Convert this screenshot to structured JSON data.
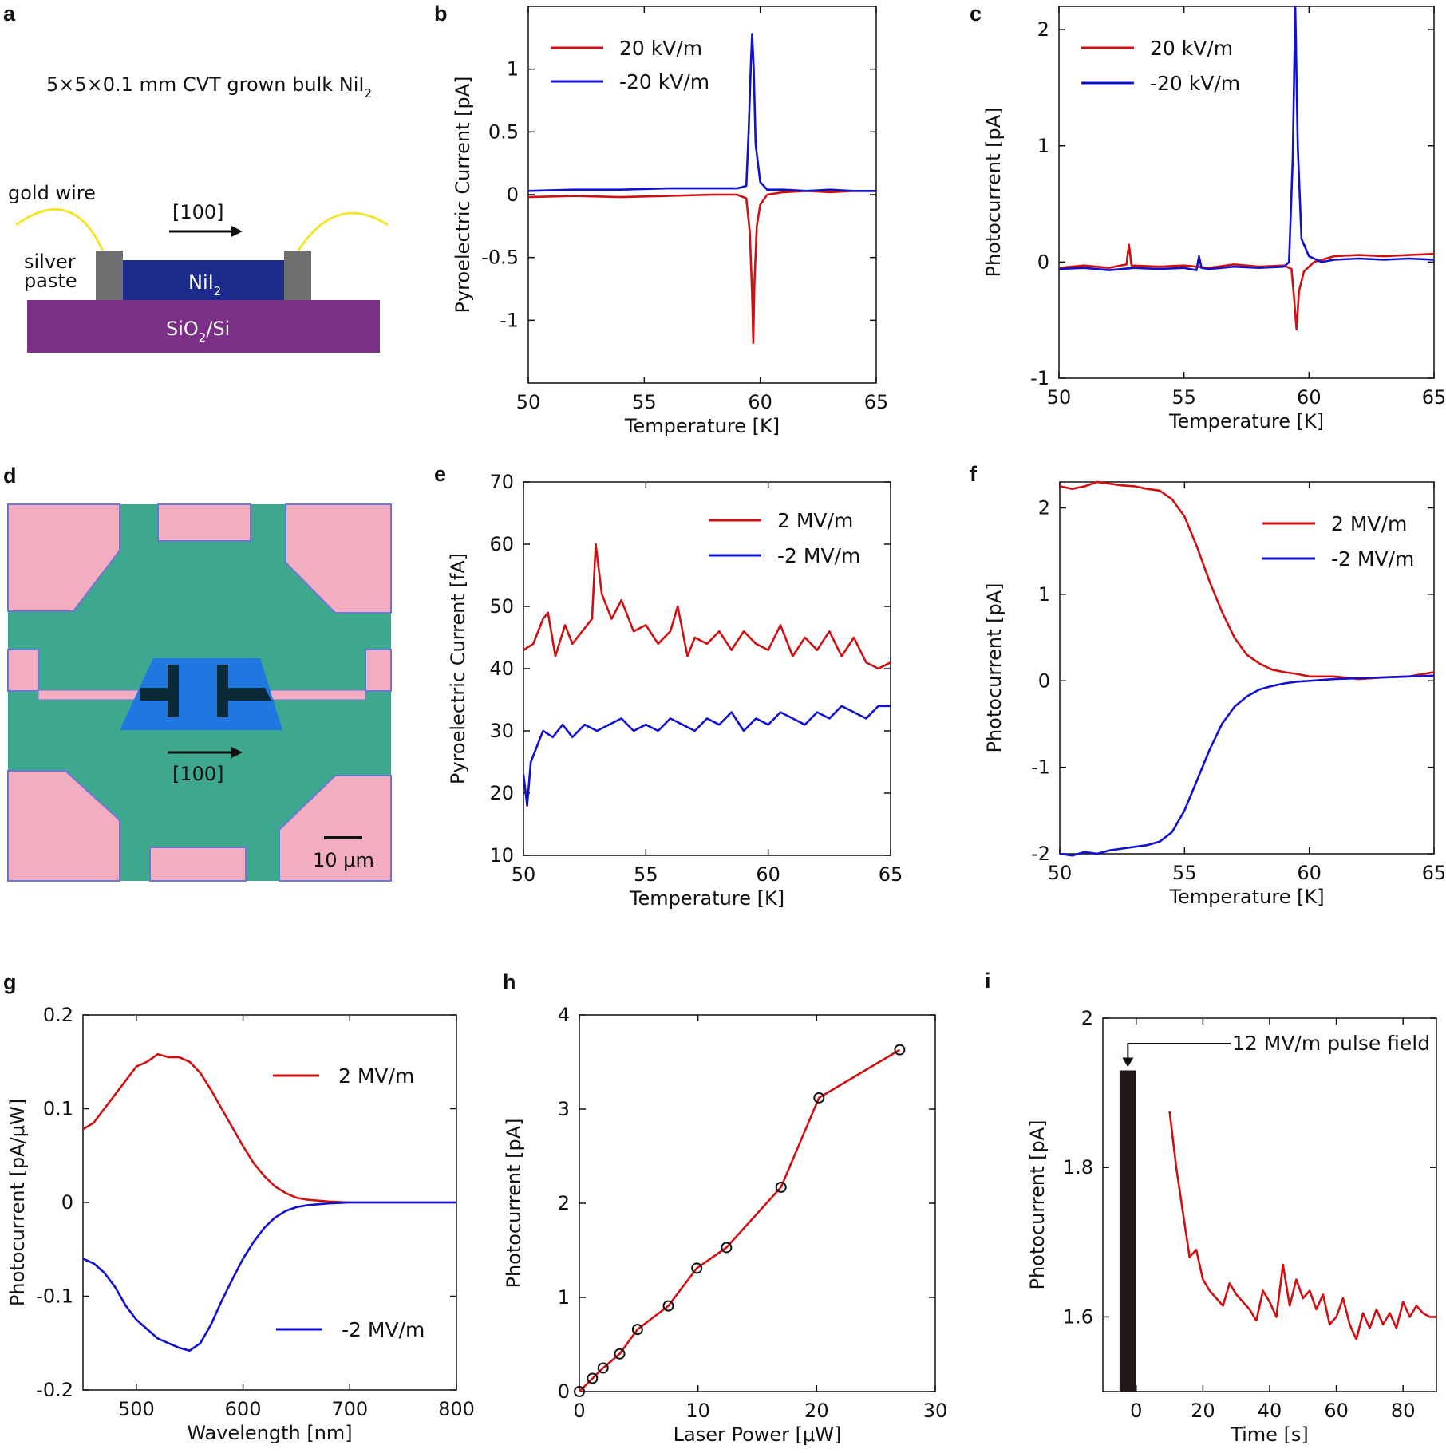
{
  "panel_labels": {
    "a": "a",
    "b": "b",
    "c": "c",
    "d": "d",
    "e": "e",
    "f": "f",
    "g": "g",
    "h": "h",
    "i": "i"
  },
  "schematic": {
    "title": "5×5×0.1 mm CVT grown bulk NiI",
    "title_sub": "2",
    "gold_wire": "gold wire",
    "direction": "[100]",
    "silver": "silver",
    "paste": "paste",
    "crystal": "NiI",
    "crystal_sub": "2",
    "substrate": "SiO",
    "substrate_sub": "2",
    "substrate_tail": "/Si",
    "colors": {
      "crystal": "#1c2a8c",
      "substrate": "#7b2f86",
      "contact": "#6f6f6f",
      "wire": "#f5e52a"
    }
  },
  "micrograph": {
    "direction": "[100]",
    "scale_bar": "10 μm",
    "colors": {
      "background": "#3da88e",
      "pad": "#f2aec0",
      "flake": "#1e78e0",
      "electrode": "#0b2a38"
    }
  },
  "chart_data": [
    {
      "id": "b",
      "type": "line",
      "title": "",
      "xlabel": "Temperature [K]",
      "ylabel": "Pyroelectric Current [pA]",
      "xlim": [
        50,
        65
      ],
      "ylim": [
        -1.5,
        1.5
      ],
      "xticks": [
        50,
        55,
        60,
        65
      ],
      "xtick_labels": [
        "50",
        "55",
        "60",
        "65"
      ],
      "yticks": [
        -1,
        -0.5,
        0,
        0.5,
        1
      ],
      "ytick_labels": [
        "-1",
        "-0.5",
        "0",
        "0.5",
        "1"
      ],
      "legend": "top-left",
      "series": [
        {
          "name": "20 kV/m",
          "color": "#d01010",
          "x": [
            50,
            52,
            54,
            56,
            58,
            59,
            59.4,
            59.55,
            59.65,
            59.7,
            59.75,
            59.85,
            60.0,
            60.3,
            61,
            62,
            63,
            64,
            65
          ],
          "y": [
            -0.02,
            -0.01,
            -0.02,
            -0.01,
            0.0,
            0.0,
            -0.03,
            -0.3,
            -0.8,
            -1.18,
            -0.7,
            -0.25,
            -0.08,
            0.0,
            0.02,
            0.03,
            0.02,
            0.03,
            0.03
          ]
        },
        {
          "name": "-20 kV/m",
          "color": "#1010d0",
          "x": [
            50,
            52,
            54,
            56,
            58,
            59,
            59.4,
            59.5,
            59.6,
            59.65,
            59.72,
            59.8,
            60.0,
            60.3,
            61,
            62,
            63,
            64,
            65
          ],
          "y": [
            0.03,
            0.04,
            0.04,
            0.05,
            0.05,
            0.05,
            0.07,
            0.5,
            1.05,
            1.28,
            1.0,
            0.4,
            0.1,
            0.04,
            0.04,
            0.03,
            0.04,
            0.03,
            0.03
          ]
        }
      ]
    },
    {
      "id": "c",
      "type": "line",
      "title": "",
      "xlabel": "Temperature [K]",
      "ylabel": "Photocurrent [pA]",
      "xlim": [
        50,
        65
      ],
      "ylim": [
        -1,
        2.2
      ],
      "xticks": [
        50,
        55,
        60,
        65
      ],
      "xtick_labels": [
        "50",
        "55",
        "60",
        "65"
      ],
      "yticks": [
        -1,
        0,
        1,
        2
      ],
      "ytick_labels": [
        "-1",
        "0",
        "1",
        "2"
      ],
      "legend": "top-left",
      "series": [
        {
          "name": "20 kV/m",
          "color": "#d01010",
          "x": [
            50,
            51,
            52,
            52.7,
            52.8,
            52.9,
            54,
            55,
            56,
            57,
            58,
            59,
            59.3,
            59.4,
            59.5,
            59.6,
            59.8,
            60.2,
            61,
            62,
            63,
            64,
            65
          ],
          "y": [
            -0.05,
            -0.03,
            -0.05,
            -0.02,
            0.15,
            -0.03,
            -0.04,
            -0.03,
            -0.05,
            -0.02,
            -0.04,
            -0.03,
            -0.06,
            -0.3,
            -0.58,
            -0.25,
            -0.08,
            0.0,
            0.05,
            0.06,
            0.05,
            0.06,
            0.07
          ]
        },
        {
          "name": "-20 kV/m",
          "color": "#1010d0",
          "x": [
            50,
            51,
            52,
            53,
            54,
            55,
            55.5,
            55.6,
            55.7,
            56,
            57,
            58,
            59,
            59.2,
            59.35,
            59.45,
            59.55,
            59.7,
            60.0,
            60.5,
            61,
            62,
            63,
            64,
            65
          ],
          "y": [
            -0.06,
            -0.05,
            -0.07,
            -0.05,
            -0.06,
            -0.05,
            -0.07,
            0.05,
            -0.05,
            -0.06,
            -0.04,
            -0.05,
            -0.04,
            0.0,
            0.9,
            2.2,
            1.0,
            0.2,
            0.05,
            0.0,
            0.02,
            0.03,
            0.02,
            0.03,
            0.02
          ]
        }
      ]
    },
    {
      "id": "e",
      "type": "line",
      "title": "",
      "xlabel": "Temperature [K]",
      "ylabel": "Pyroelectric Current [fA]",
      "xlim": [
        50,
        65
      ],
      "ylim": [
        10,
        70
      ],
      "xticks": [
        50,
        55,
        60,
        65
      ],
      "xtick_labels": [
        "50",
        "55",
        "60",
        "65"
      ],
      "yticks": [
        10,
        20,
        30,
        40,
        50,
        60,
        70
      ],
      "ytick_labels": [
        "10",
        "20",
        "30",
        "40",
        "50",
        "60",
        "70"
      ],
      "legend": "top-right",
      "series": [
        {
          "name": "2 MV/m",
          "color": "#d01010",
          "x": [
            50,
            50.4,
            50.8,
            51.0,
            51.3,
            51.7,
            52.0,
            52.4,
            52.8,
            52.95,
            53.2,
            53.6,
            54.0,
            54.5,
            55.0,
            55.5,
            56.0,
            56.3,
            56.7,
            57.0,
            57.5,
            58.0,
            58.5,
            59.0,
            59.5,
            60.0,
            60.5,
            61.0,
            61.5,
            62.0,
            62.5,
            63.0,
            63.5,
            64.0,
            64.5,
            65.0
          ],
          "y": [
            43,
            44,
            48,
            49,
            42,
            47,
            44,
            46,
            48,
            60,
            52,
            48,
            51,
            46,
            47,
            44,
            46,
            50,
            42,
            45,
            44,
            46,
            43,
            46,
            44,
            43,
            47,
            42,
            45,
            43,
            46,
            42,
            45,
            41,
            40,
            41
          ]
        },
        {
          "name": "-2 MV/m",
          "color": "#1010d0",
          "x": [
            50,
            50.15,
            50.3,
            50.5,
            50.8,
            51.2,
            51.6,
            52.0,
            52.5,
            53.0,
            53.5,
            54.0,
            54.5,
            55.0,
            55.5,
            56.0,
            56.5,
            57.0,
            57.5,
            58.0,
            58.5,
            59.0,
            59.5,
            60.0,
            60.5,
            61.0,
            61.5,
            62.0,
            62.5,
            63.0,
            63.5,
            64.0,
            64.5,
            65.0
          ],
          "y": [
            23,
            18,
            25,
            27,
            30,
            29,
            31,
            29,
            31,
            30,
            31,
            32,
            30,
            31,
            30,
            32,
            31,
            30,
            32,
            31,
            33,
            30,
            32,
            31,
            33,
            32,
            31,
            33,
            32,
            34,
            33,
            32,
            34,
            34
          ]
        }
      ]
    },
    {
      "id": "f",
      "type": "line",
      "title": "",
      "xlabel": "Temperature [K]",
      "ylabel": "Photocurrent [pA]",
      "xlim": [
        50,
        65
      ],
      "ylim": [
        -2,
        2.3
      ],
      "xticks": [
        50,
        55,
        60,
        65
      ],
      "xtick_labels": [
        "50",
        "55",
        "60",
        "65"
      ],
      "yticks": [
        -2,
        -1,
        0,
        1,
        2
      ],
      "ytick_labels": [
        "-2",
        "-1",
        "0",
        "1",
        "2"
      ],
      "legend": "top-right",
      "series": [
        {
          "name": "2 MV/m",
          "color": "#d01010",
          "x": [
            50,
            50.5,
            51,
            51.5,
            52,
            52.5,
            53,
            53.5,
            54,
            54.5,
            55,
            55.5,
            56,
            56.5,
            57,
            57.5,
            58,
            58.5,
            59,
            59.5,
            60,
            61,
            62,
            63,
            64,
            65
          ],
          "y": [
            2.25,
            2.22,
            2.25,
            2.3,
            2.28,
            2.26,
            2.25,
            2.22,
            2.2,
            2.1,
            1.9,
            1.55,
            1.15,
            0.8,
            0.5,
            0.3,
            0.2,
            0.13,
            0.1,
            0.08,
            0.05,
            0.05,
            0.02,
            0.04,
            0.05,
            0.1
          ]
        },
        {
          "name": "-2 MV/m",
          "color": "#1010d0",
          "x": [
            50,
            50.5,
            51,
            51.5,
            52,
            52.5,
            53,
            53.5,
            54,
            54.5,
            55,
            55.5,
            56,
            56.5,
            57,
            57.5,
            58,
            58.5,
            59,
            59.5,
            60,
            61,
            62,
            63,
            64,
            65
          ],
          "y": [
            -2.0,
            -2.02,
            -1.98,
            -2.0,
            -1.96,
            -1.94,
            -1.92,
            -1.9,
            -1.86,
            -1.75,
            -1.5,
            -1.15,
            -0.8,
            -0.5,
            -0.3,
            -0.18,
            -0.1,
            -0.06,
            -0.03,
            -0.01,
            0.0,
            0.02,
            0.03,
            0.04,
            0.05,
            0.06
          ]
        }
      ]
    },
    {
      "id": "g",
      "type": "line",
      "title": "",
      "xlabel": "Wavelength [nm]",
      "ylabel": "Photocurrent  [pA/μW]",
      "xlim": [
        450,
        800
      ],
      "ylim": [
        -0.2,
        0.2
      ],
      "xticks": [
        500,
        600,
        700,
        800
      ],
      "xtick_labels": [
        "500",
        "600",
        "700",
        "800"
      ],
      "yticks": [
        -0.2,
        -0.1,
        0,
        0.1,
        0.2
      ],
      "ytick_labels": [
        "-0.2",
        "-0.1",
        "0",
        "0.1",
        "0.2"
      ],
      "legend": "split: upper-right and lower-right",
      "series": [
        {
          "name": "2 MV/m",
          "color": "#d01010",
          "x": [
            450,
            460,
            470,
            480,
            490,
            500,
            510,
            520,
            530,
            540,
            550,
            560,
            570,
            580,
            590,
            600,
            610,
            620,
            630,
            640,
            650,
            660,
            670,
            680,
            700,
            750,
            800
          ],
          "y": [
            0.078,
            0.085,
            0.1,
            0.115,
            0.13,
            0.145,
            0.15,
            0.158,
            0.155,
            0.155,
            0.15,
            0.138,
            0.12,
            0.1,
            0.08,
            0.06,
            0.042,
            0.028,
            0.017,
            0.01,
            0.005,
            0.003,
            0.002,
            0.001,
            0.0,
            0.0,
            0.0
          ]
        },
        {
          "name": "-2 MV/m",
          "color": "#1010d0",
          "x": [
            450,
            460,
            470,
            480,
            490,
            500,
            510,
            520,
            530,
            540,
            550,
            560,
            570,
            580,
            590,
            600,
            610,
            620,
            630,
            640,
            650,
            660,
            670,
            680,
            700,
            750,
            800
          ],
          "y": [
            -0.06,
            -0.065,
            -0.075,
            -0.09,
            -0.11,
            -0.125,
            -0.135,
            -0.145,
            -0.15,
            -0.155,
            -0.158,
            -0.15,
            -0.13,
            -0.105,
            -0.082,
            -0.06,
            -0.042,
            -0.027,
            -0.016,
            -0.009,
            -0.005,
            -0.003,
            -0.002,
            -0.001,
            0.0,
            0.0,
            0.0
          ]
        }
      ]
    },
    {
      "id": "h",
      "type": "line",
      "title": "",
      "xlabel": "Laser Power [μW]",
      "ylabel": "Photocurrent [pA]",
      "xlim": [
        0,
        30
      ],
      "ylim": [
        0,
        4
      ],
      "xticks": [
        0,
        10,
        20,
        30
      ],
      "xtick_labels": [
        "0",
        "10",
        "20",
        "30"
      ],
      "yticks": [
        0,
        1,
        2,
        3,
        4
      ],
      "ytick_labels": [
        "0",
        "1",
        "2",
        "3",
        "4"
      ],
      "legend": "none",
      "series": [
        {
          "name": "photocurrent",
          "color": "#d01010",
          "markers": true,
          "x": [
            0,
            1.1,
            2.0,
            3.4,
            4.9,
            7.5,
            9.9,
            12.4,
            17.0,
            20.2,
            27.0
          ],
          "y": [
            0.0,
            0.14,
            0.25,
            0.4,
            0.66,
            0.91,
            1.31,
            1.53,
            2.17,
            3.12,
            3.63
          ]
        }
      ]
    },
    {
      "id": "i",
      "type": "line",
      "title": "",
      "xlabel": "Time [s]",
      "ylabel": "Photocurrent [pA]",
      "xlim": [
        -10,
        90
      ],
      "ylim": [
        1.5,
        2.0
      ],
      "xticks": [
        0,
        20,
        40,
        60,
        80
      ],
      "xtick_labels": [
        "0",
        "20",
        "40",
        "60",
        "80"
      ],
      "yticks": [
        1.6,
        1.8,
        2.0
      ],
      "ytick_labels": [
        "1.6",
        "1.8",
        "2"
      ],
      "legend": "none",
      "annotation": "12 MV/m pulse field",
      "pulse": {
        "x_start": -5,
        "x_end": 0,
        "top": 1.93
      },
      "series": [
        {
          "name": "photocurrent",
          "color": "#d01010",
          "x": [
            10,
            12,
            14,
            16,
            18,
            20,
            22,
            24,
            26,
            28,
            30,
            32,
            34,
            36,
            38,
            40,
            42,
            44,
            46,
            48,
            50,
            52,
            54,
            56,
            58,
            60,
            62,
            64,
            66,
            68,
            70,
            72,
            74,
            76,
            78,
            80,
            82,
            84,
            86,
            88,
            90
          ],
          "y": [
            1.875,
            1.8,
            1.74,
            1.68,
            1.69,
            1.65,
            1.635,
            1.625,
            1.615,
            1.645,
            1.63,
            1.62,
            1.61,
            1.595,
            1.635,
            1.62,
            1.6,
            1.67,
            1.615,
            1.65,
            1.625,
            1.635,
            1.61,
            1.63,
            1.59,
            1.6,
            1.625,
            1.59,
            1.57,
            1.605,
            1.585,
            1.61,
            1.59,
            1.605,
            1.585,
            1.62,
            1.6,
            1.615,
            1.605,
            1.6,
            1.6
          ]
        }
      ]
    }
  ]
}
